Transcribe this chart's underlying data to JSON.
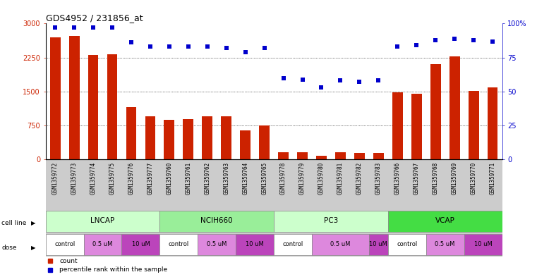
{
  "title": "GDS4952 / 231856_at",
  "samples": [
    "GSM1359772",
    "GSM1359773",
    "GSM1359774",
    "GSM1359775",
    "GSM1359776",
    "GSM1359777",
    "GSM1359760",
    "GSM1359761",
    "GSM1359762",
    "GSM1359763",
    "GSM1359764",
    "GSM1359765",
    "GSM1359778",
    "GSM1359779",
    "GSM1359780",
    "GSM1359781",
    "GSM1359782",
    "GSM1359783",
    "GSM1359766",
    "GSM1359767",
    "GSM1359768",
    "GSM1359769",
    "GSM1359770",
    "GSM1359771"
  ],
  "counts": [
    2700,
    2720,
    2300,
    2320,
    1150,
    950,
    880,
    900,
    950,
    950,
    650,
    760,
    170,
    160,
    90,
    170,
    155,
    155,
    1490,
    1450,
    2100,
    2270,
    1520,
    1600
  ],
  "percentile_ranks": [
    97,
    97,
    97,
    97,
    86,
    83,
    83,
    83,
    83,
    82,
    79,
    82,
    60,
    59,
    53,
    58,
    57,
    58,
    83,
    84,
    88,
    89,
    88,
    87
  ],
  "bar_color": "#cc2200",
  "dot_color": "#0000cc",
  "cell_lines": [
    {
      "name": "LNCAP",
      "start": 0,
      "end": 6,
      "color": "#ccffcc"
    },
    {
      "name": "NCIH660",
      "start": 6,
      "end": 12,
      "color": "#99ee99"
    },
    {
      "name": "PC3",
      "start": 12,
      "end": 18,
      "color": "#ccffcc"
    },
    {
      "name": "VCAP",
      "start": 18,
      "end": 24,
      "color": "#44dd44"
    }
  ],
  "dose_groups": [
    {
      "label": "control",
      "start": 0,
      "end": 2,
      "color": "#ffffff"
    },
    {
      "label": "0.5 uM",
      "start": 2,
      "end": 4,
      "color": "#ee88ee"
    },
    {
      "label": "10 uM",
      "start": 4,
      "end": 6,
      "color": "#cc44cc"
    },
    {
      "label": "control",
      "start": 6,
      "end": 8,
      "color": "#ffffff"
    },
    {
      "label": "0.5 uM",
      "start": 8,
      "end": 10,
      "color": "#ee88ee"
    },
    {
      "label": "10 uM",
      "start": 10,
      "end": 12,
      "color": "#cc44cc"
    },
    {
      "label": "control",
      "start": 12,
      "end": 14,
      "color": "#ffffff"
    },
    {
      "label": "0.5 uM",
      "start": 14,
      "end": 17,
      "color": "#ee88ee"
    },
    {
      "label": "10 uM",
      "start": 17,
      "end": 18,
      "color": "#cc44cc"
    },
    {
      "label": "control",
      "start": 18,
      "end": 20,
      "color": "#ffffff"
    },
    {
      "label": "0.5 uM",
      "start": 20,
      "end": 22,
      "color": "#ee88ee"
    },
    {
      "label": "10 uM",
      "start": 22,
      "end": 24,
      "color": "#cc44cc"
    }
  ],
  "ylim_left": [
    0,
    3000
  ],
  "ylim_right": [
    0,
    100
  ],
  "yticks_left": [
    0,
    750,
    1500,
    2250,
    3000
  ],
  "yticks_right": [
    0,
    25,
    50,
    75,
    100
  ],
  "ytick_labels_right": [
    "0",
    "25",
    "50",
    "75",
    "100%"
  ],
  "bg_color": "#ffffff",
  "xtick_bg_color": "#cccccc",
  "cell_row_bg": "#cccccc",
  "dose_row_bg": "#cccccc"
}
